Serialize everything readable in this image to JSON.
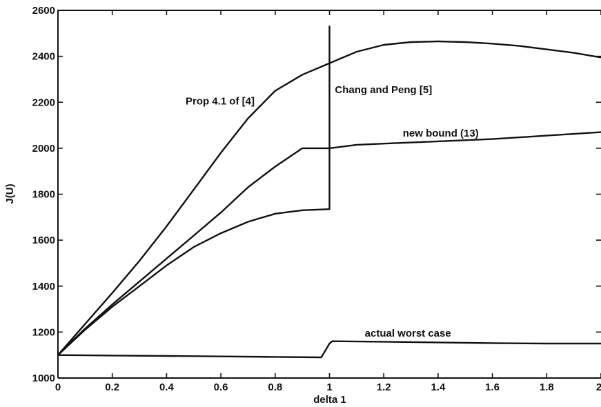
{
  "chart_data": {
    "type": "line",
    "title": "",
    "xlabel": "delta  1",
    "ylabel": "J(U)",
    "xlim": [
      0,
      2
    ],
    "ylim": [
      1000,
      2600
    ],
    "xticks": [
      0,
      0.2,
      0.4,
      0.6,
      0.8,
      1,
      1.2,
      1.4,
      1.6,
      1.8,
      2
    ],
    "xtick_labels": [
      "0",
      "0.2",
      "0.4",
      "0.6",
      "0.8",
      "1",
      "1.2",
      "1.4",
      "1.6",
      "1.8",
      "2"
    ],
    "yticks": [
      1000,
      1200,
      1400,
      1600,
      1800,
      2000,
      2200,
      2400,
      2600
    ],
    "ytick_labels": [
      "1000",
      "1200",
      "1400",
      "1600",
      "1800",
      "2000",
      "2200",
      "2400",
      "2600"
    ],
    "grid": false,
    "legend": "none",
    "series": [
      {
        "label_text": "Prop 4.1 of [4]",
        "x": [
          0,
          0.1,
          0.2,
          0.3,
          0.4,
          0.5,
          0.6,
          0.7,
          0.8,
          0.9,
          1.0,
          1.1,
          1.2,
          1.3,
          1.4,
          1.5,
          1.6,
          1.7,
          1.8,
          1.9,
          2.0
        ],
        "y": [
          1100,
          1235,
          1370,
          1510,
          1660,
          1820,
          1980,
          2130,
          2250,
          2320,
          2370,
          2420,
          2450,
          2462,
          2465,
          2462,
          2455,
          2445,
          2430,
          2415,
          2395
        ]
      },
      {
        "label_text": "new bound (13)",
        "x": [
          0,
          0.1,
          0.2,
          0.3,
          0.4,
          0.5,
          0.6,
          0.7,
          0.8,
          0.9,
          1.0,
          1.1,
          1.2,
          1.4,
          1.6,
          1.8,
          2.0
        ],
        "y": [
          1100,
          1215,
          1320,
          1420,
          1520,
          1620,
          1720,
          1830,
          1920,
          2000,
          2000,
          2015,
          2020,
          2030,
          2040,
          2055,
          2070
        ]
      },
      {
        "label_text": "Chang and Peng [5]",
        "x": [
          0,
          0.1,
          0.2,
          0.3,
          0.4,
          0.5,
          0.6,
          0.7,
          0.8,
          0.9,
          1.0,
          1.0,
          1.0
        ],
        "y": [
          1100,
          1210,
          1310,
          1400,
          1490,
          1570,
          1630,
          1680,
          1715,
          1730,
          1735,
          2530,
          1735
        ]
      },
      {
        "label_text": "actual worst case",
        "x": [
          0,
          0.2,
          0.4,
          0.6,
          0.8,
          0.97,
          1.0,
          1.01,
          1.2,
          1.4,
          1.6,
          1.8,
          2.0
        ],
        "y": [
          1100,
          1098,
          1096,
          1094,
          1092,
          1090,
          1150,
          1160,
          1158,
          1155,
          1152,
          1150,
          1150
        ]
      }
    ],
    "annotations": [
      {
        "text": "Prop 4.1 of [4]",
        "x": 0.47,
        "y": 2190
      },
      {
        "text": "Chang and Peng [5]",
        "x": 1.02,
        "y": 2240
      },
      {
        "text": "new bound (13)",
        "x": 1.27,
        "y": 2050
      },
      {
        "text": "actual worst case",
        "x": 1.13,
        "y": 1180
      }
    ]
  }
}
